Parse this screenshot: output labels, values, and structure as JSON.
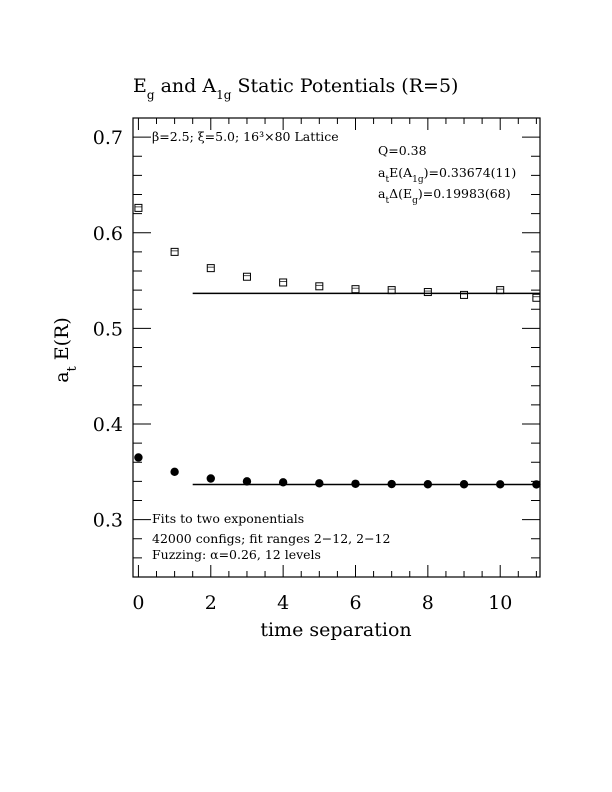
{
  "chart_data": {
    "type": "scatter",
    "title": "Eg and A1g Static Potentials (R=5)",
    "title_parts": [
      {
        "text": "E",
        "sub": false
      },
      {
        "text": "g",
        "sub": true
      },
      {
        "text": " and A",
        "sub": false
      },
      {
        "text": "1g",
        "sub": true
      },
      {
        "text": " Static Potentials (R=5)",
        "sub": false
      }
    ],
    "xlabel": "time separation",
    "ylabel": "a_t E(R)",
    "ylabel_parts": [
      {
        "text": "a",
        "sub": false
      },
      {
        "text": "t",
        "sub": true
      },
      {
        "text": " E(R)",
        "sub": false
      }
    ],
    "xlim": [
      -0.15,
      11.1
    ],
    "ylim": [
      0.24,
      0.72
    ],
    "x_ticks": [
      0,
      2,
      4,
      6,
      8,
      10
    ],
    "x_tick_labels": [
      "0",
      "2",
      "4",
      "6",
      "8",
      "10"
    ],
    "y_ticks": [
      0.3,
      0.4,
      0.5,
      0.6,
      0.7
    ],
    "y_tick_labels": [
      "0.3",
      "0.4",
      "0.5",
      "0.6",
      "0.7"
    ],
    "grid": false,
    "series": [
      {
        "marker": "open-square",
        "x": [
          0,
          1,
          2,
          3,
          4,
          5,
          6,
          7,
          8,
          9,
          10,
          11
        ],
        "y": [
          0.626,
          0.58,
          0.563,
          0.554,
          0.548,
          0.544,
          0.541,
          0.54,
          0.538,
          0.535,
          0.54,
          0.532
        ],
        "fit_x_range": [
          1.5,
          11.1
        ],
        "fit_value": 0.5366
      },
      {
        "marker": "filled-circle",
        "x": [
          0,
          1,
          2,
          3,
          4,
          5,
          6,
          7,
          8,
          9,
          10,
          11
        ],
        "y": [
          0.365,
          0.35,
          0.343,
          0.34,
          0.339,
          0.338,
          0.3375,
          0.3372,
          0.337,
          0.337,
          0.3369,
          0.3368
        ],
        "fit_x_range": [
          1.5,
          11.1
        ],
        "fit_value": 0.33674
      }
    ],
    "annotations": {
      "lattice": "β=2.5; ξ=5.0; 16³×80 Lattice",
      "q": "Q=0.38",
      "a1g": {
        "pre": "a",
        "pre_sub": "t",
        "mid": "E(A",
        "mid_sub": "1g",
        "post": ")=0.33674(11)"
      },
      "eg": {
        "pre": "a",
        "pre_sub": "t",
        "mid": "Δ(E",
        "mid_sub": "g",
        "post": ")=0.19983(68)"
      },
      "fits": "Fits to two exponentials",
      "configs": "42000 configs; fit ranges 2−12, 2−12",
      "fuzzing": "Fuzzing: α=0.26, 12 levels"
    }
  }
}
